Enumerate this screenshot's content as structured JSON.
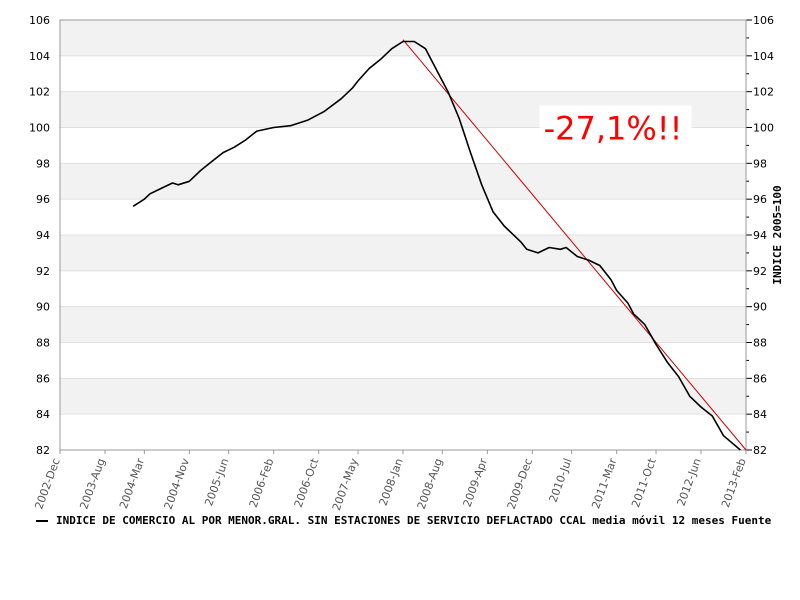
{
  "chart_data": {
    "type": "line",
    "title": "",
    "xlabel": "",
    "ylabel_right": "INDICE 2005=100",
    "ylim": [
      82,
      106
    ],
    "y_ticks": [
      82,
      84,
      86,
      88,
      90,
      92,
      94,
      96,
      98,
      100,
      102,
      104,
      106
    ],
    "x_range": [
      "2002-12",
      "2013-02"
    ],
    "x_tick_labels": [
      "2002-Dec",
      "2003-Aug",
      "2004-Mar",
      "2004-Nov",
      "2005-Jun",
      "2006-Feb",
      "2006-Oct",
      "2007-May",
      "2008-Jan",
      "2008-Aug",
      "2009-Apr",
      "2009-Dec",
      "2010-Jul",
      "2011-Mar",
      "2011-Oct",
      "2012-Jun",
      "2013-Feb"
    ],
    "x_tick_dates": [
      "2002-12",
      "2003-08",
      "2004-03",
      "2004-11",
      "2005-06",
      "2006-02",
      "2006-10",
      "2007-05",
      "2008-01",
      "2008-08",
      "2009-04",
      "2009-12",
      "2010-07",
      "2011-03",
      "2011-10",
      "2012-06",
      "2013-02"
    ],
    "grid": "horizontal-bands",
    "colors": {
      "series": "#000000",
      "trend": "#cc0000",
      "annotation": "#ff0000",
      "band": "#f2f2f2"
    },
    "series": [
      {
        "name": "INDICE DE COMERCIO AL POR MENOR.GRAL. SIN ESTACIONES DE SERVICIO DEFLACTADO CCAL media móvil 12 meses",
        "points": [
          [
            "2004-01",
            95.6
          ],
          [
            "2004-03",
            96.0
          ],
          [
            "2004-04",
            96.3
          ],
          [
            "2004-06",
            96.6
          ],
          [
            "2004-08",
            96.9
          ],
          [
            "2004-09",
            96.8
          ],
          [
            "2004-11",
            97.0
          ],
          [
            "2005-01",
            97.6
          ],
          [
            "2005-03",
            98.1
          ],
          [
            "2005-05",
            98.6
          ],
          [
            "2005-07",
            98.9
          ],
          [
            "2005-09",
            99.3
          ],
          [
            "2005-11",
            99.8
          ],
          [
            "2006-02",
            100.0
          ],
          [
            "2006-05",
            100.1
          ],
          [
            "2006-08",
            100.4
          ],
          [
            "2006-11",
            100.9
          ],
          [
            "2007-02",
            101.6
          ],
          [
            "2007-04",
            102.2
          ],
          [
            "2007-05",
            102.6
          ],
          [
            "2007-07",
            103.3
          ],
          [
            "2007-09",
            103.8
          ],
          [
            "2007-11",
            104.4
          ],
          [
            "2008-01",
            104.8
          ],
          [
            "2008-03",
            104.8
          ],
          [
            "2008-05",
            104.4
          ],
          [
            "2008-07",
            103.2
          ],
          [
            "2008-09",
            102.0
          ],
          [
            "2008-11",
            100.5
          ],
          [
            "2009-01",
            98.6
          ],
          [
            "2009-03",
            96.8
          ],
          [
            "2009-05",
            95.3
          ],
          [
            "2009-07",
            94.5
          ],
          [
            "2009-09",
            93.9
          ],
          [
            "2009-10",
            93.6
          ],
          [
            "2009-11",
            93.2
          ],
          [
            "2010-01",
            93.0
          ],
          [
            "2010-03",
            93.3
          ],
          [
            "2010-05",
            93.2
          ],
          [
            "2010-06",
            93.3
          ],
          [
            "2010-08",
            92.8
          ],
          [
            "2010-10",
            92.6
          ],
          [
            "2010-12",
            92.3
          ],
          [
            "2011-02",
            91.5
          ],
          [
            "2011-03",
            90.9
          ],
          [
            "2011-05",
            90.2
          ],
          [
            "2011-06",
            89.6
          ],
          [
            "2011-08",
            89.0
          ],
          [
            "2011-10",
            87.9
          ],
          [
            "2011-12",
            86.9
          ],
          [
            "2012-02",
            86.1
          ],
          [
            "2012-04",
            85.0
          ],
          [
            "2012-06",
            84.4
          ],
          [
            "2012-08",
            83.9
          ],
          [
            "2012-10",
            82.8
          ],
          [
            "2013-01",
            82.0
          ]
        ]
      }
    ],
    "trend_line": {
      "from": [
        "2008-01",
        104.9
      ],
      "to": [
        "2013-02",
        82.0
      ]
    },
    "annotation": {
      "text": "-27,1%!!",
      "at": [
        "2010-02",
        100.0
      ]
    }
  },
  "legend": {
    "text": "INDICE DE COMERCIO AL POR MENOR.GRAL. SIN ESTACIONES DE SERVICIO DEFLACTADO CCAL media móvil 12 meses  Fuente"
  }
}
